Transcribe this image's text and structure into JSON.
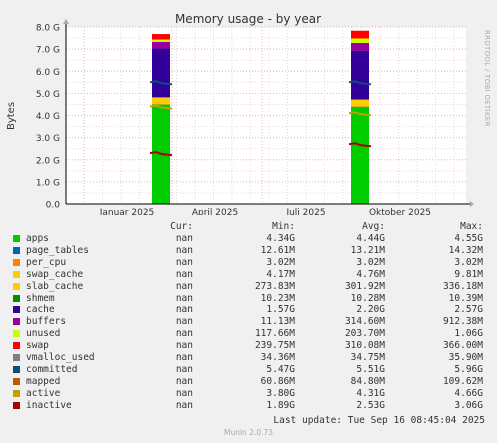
{
  "chart_data": {
    "type": "area",
    "title": "Memory usage - by year",
    "ylabel": "Bytes",
    "ylim": [
      0,
      8.0
    ],
    "y_unit": "G",
    "y_ticks": [
      "0.0",
      "1.0 G",
      "2.0 G",
      "3.0 G",
      "4.0 G",
      "5.0 G",
      "6.0 G",
      "7.0 G",
      "8.0 G"
    ],
    "x_ticks": [
      "Januar 2025",
      "April 2025",
      "Juli 2025",
      "Oktober 2025"
    ],
    "grid": true,
    "bursts": [
      {
        "period": "Januar 2025",
        "stack": [
          {
            "series": "apps",
            "value": 4.5
          },
          {
            "series": "page_tables",
            "value": 0.013
          },
          {
            "series": "per_cpu",
            "value": 0.003
          },
          {
            "series": "swap_cache",
            "value": 0.005
          },
          {
            "series": "slab_cache",
            "value": 0.3
          },
          {
            "series": "shmem",
            "value": 0.01
          },
          {
            "series": "cache",
            "value": 2.2
          },
          {
            "series": "buffers",
            "value": 0.3
          },
          {
            "series": "unused",
            "value": 0.1
          },
          {
            "series": "swap",
            "value": 0.25
          }
        ],
        "lines": {
          "committed": 5.5,
          "active": 4.4,
          "inactive": 2.3
        }
      },
      {
        "period": "Oktober 2025",
        "stack": [
          {
            "series": "apps",
            "value": 4.4
          },
          {
            "series": "page_tables",
            "value": 0.013
          },
          {
            "series": "per_cpu",
            "value": 0.003
          },
          {
            "series": "swap_cache",
            "value": 0.005
          },
          {
            "series": "slab_cache",
            "value": 0.3
          },
          {
            "series": "shmem",
            "value": 0.01
          },
          {
            "series": "cache",
            "value": 2.2
          },
          {
            "series": "buffers",
            "value": 0.35
          },
          {
            "series": "unused",
            "value": 0.2
          },
          {
            "series": "swap",
            "value": 0.35
          }
        ],
        "lines": {
          "committed": 5.5,
          "active": 4.1,
          "inactive": 2.7
        }
      }
    ]
  },
  "legend": {
    "headers": {
      "cur": "Cur:",
      "min": "Min:",
      "avg": "Avg:",
      "max": "Max:"
    },
    "rows": [
      {
        "name": "apps",
        "color": "#00cc00",
        "cur": "nan",
        "min": "4.34G",
        "avg": "4.44G",
        "max": "4.55G"
      },
      {
        "name": "page_tables",
        "color": "#0066b3",
        "cur": "nan",
        "min": "12.61M",
        "avg": "13.21M",
        "max": "14.32M"
      },
      {
        "name": "per_cpu",
        "color": "#ff8000",
        "cur": "nan",
        "min": "3.02M",
        "avg": "3.02M",
        "max": "3.02M"
      },
      {
        "name": "swap_cache",
        "color": "#ffcc00",
        "cur": "nan",
        "min": "4.17M",
        "avg": "4.76M",
        "max": "9.81M"
      },
      {
        "name": "slab_cache",
        "color": "#ffcc00",
        "cur": "nan",
        "min": "273.83M",
        "avg": "301.92M",
        "max": "336.18M"
      },
      {
        "name": "shmem",
        "color": "#008f00",
        "cur": "nan",
        "min": "10.23M",
        "avg": "10.28M",
        "max": "10.39M"
      },
      {
        "name": "cache",
        "color": "#330099",
        "cur": "nan",
        "min": "1.57G",
        "avg": "2.20G",
        "max": "2.57G"
      },
      {
        "name": "buffers",
        "color": "#990099",
        "cur": "nan",
        "min": "11.13M",
        "avg": "314.60M",
        "max": "912.38M"
      },
      {
        "name": "unused",
        "color": "#ccff00",
        "cur": "nan",
        "min": "117.66M",
        "avg": "203.70M",
        "max": "1.06G"
      },
      {
        "name": "swap",
        "color": "#ff0000",
        "cur": "nan",
        "min": "239.75M",
        "avg": "310.08M",
        "max": "366.00M"
      },
      {
        "name": "vmalloc_used",
        "color": "#808080",
        "cur": "nan",
        "min": "34.36M",
        "avg": "34.75M",
        "max": "35.90M"
      },
      {
        "name": "committed",
        "color": "#0a4f77",
        "cur": "nan",
        "min": "5.47G",
        "avg": "5.51G",
        "max": "5.96G"
      },
      {
        "name": "mapped",
        "color": "#c05a00",
        "cur": "nan",
        "min": "60.86M",
        "avg": "84.80M",
        "max": "109.62M"
      },
      {
        "name": "active",
        "color": "#c0a000",
        "cur": "nan",
        "min": "3.80G",
        "avg": "4.31G",
        "max": "4.66G"
      },
      {
        "name": "inactive",
        "color": "#aa0000",
        "cur": "nan",
        "min": "1.89G",
        "avg": "2.53G",
        "max": "3.06G"
      }
    ]
  },
  "last_update": "Last update: Tue Sep 16 08:45:04 2025",
  "footer": "Munin 2.0.73",
  "side_text": "RRDTOOL / TOBI OETIKER"
}
